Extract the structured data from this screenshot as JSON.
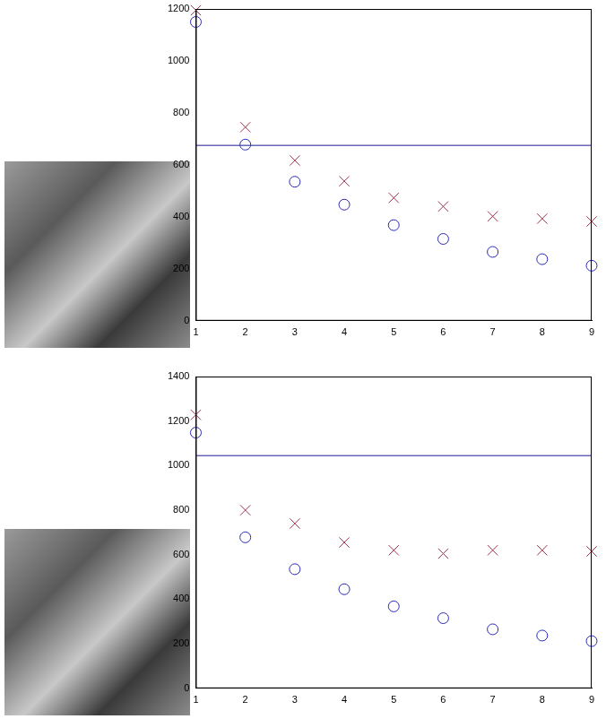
{
  "chart_data": [
    {
      "type": "scatter",
      "grid": false,
      "xlim": [
        1,
        9
      ],
      "xticks": [
        1,
        2,
        3,
        4,
        5,
        6,
        7,
        8,
        9
      ],
      "ylim": [
        0,
        1200
      ],
      "yticks": [
        0,
        200,
        400,
        600,
        800,
        1000,
        1200
      ],
      "hline": 675,
      "series": [
        {
          "color": "#2a2ab8",
          "marker": "circle",
          "values": [
            1150,
            678,
            535,
            447,
            368,
            315,
            265,
            237,
            212
          ]
        },
        {
          "color": "#a0304a",
          "marker": "x",
          "values": [
            1195,
            745,
            617,
            537,
            473,
            440,
            402,
            393,
            382
          ]
        }
      ]
    },
    {
      "type": "scatter",
      "grid": false,
      "xlim": [
        1,
        9
      ],
      "xticks": [
        1,
        2,
        3,
        4,
        5,
        6,
        7,
        8,
        9
      ],
      "ylim": [
        0,
        1400
      ],
      "yticks": [
        0,
        200,
        400,
        600,
        800,
        1000,
        1200,
        1400
      ],
      "hline": 1045,
      "series": [
        {
          "color": "#2a2ab8",
          "marker": "circle",
          "values": [
            1148,
            678,
            535,
            445,
            368,
            315,
            265,
            237,
            212
          ]
        },
        {
          "color": "#a0304a",
          "marker": "x",
          "values": [
            1228,
            800,
            740,
            655,
            620,
            605,
            620,
            620,
            615
          ]
        }
      ]
    }
  ]
}
